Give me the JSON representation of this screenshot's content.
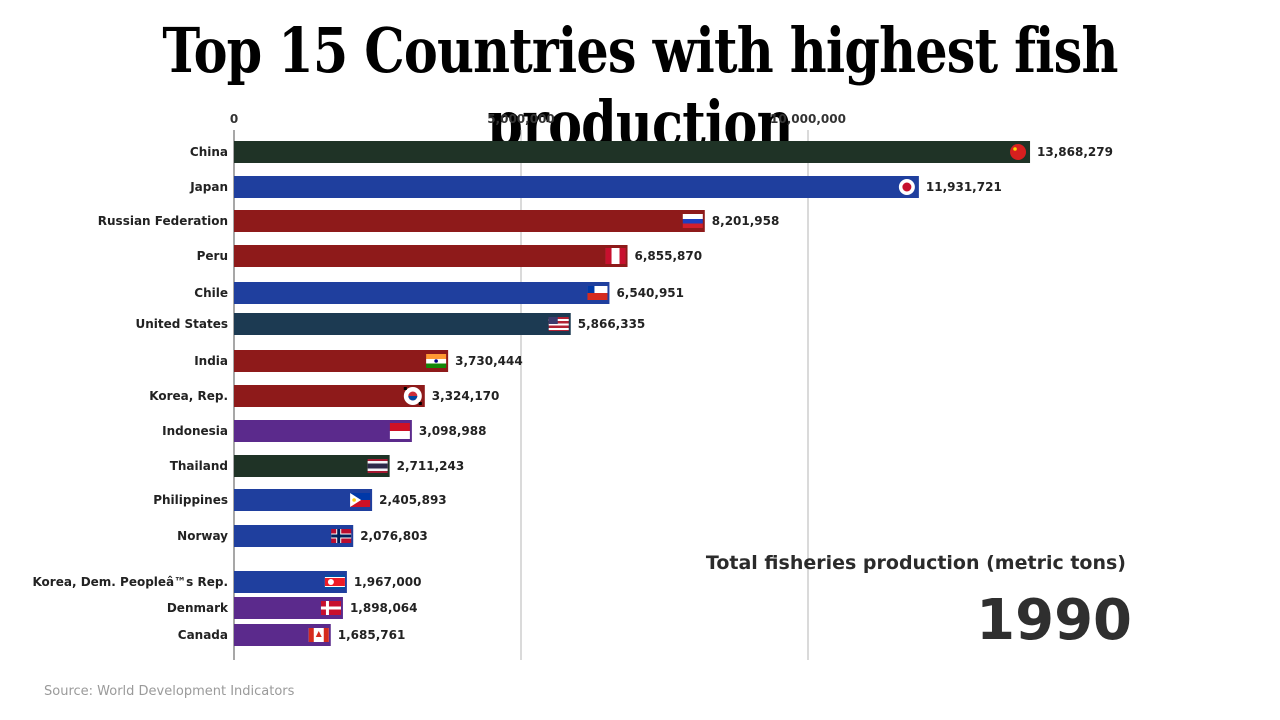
{
  "title": "Top 15 Countries with highest fish production",
  "metric_label": "Total fisheries production (metric tons)",
  "year": "1990",
  "source": "Source: World Development Indicators",
  "chart_data": {
    "type": "bar",
    "orientation": "horizontal",
    "xlim": [
      0,
      15000000
    ],
    "x_ticks": [
      0,
      5000000,
      10000000
    ],
    "x_tick_labels": [
      "0",
      "5,000,000",
      "10,000,000"
    ],
    "grid": true,
    "categories": [
      "China",
      "Japan",
      "Russian Federation",
      "Peru",
      "Chile",
      "United States",
      "India",
      "Korea, Rep.",
      "Indonesia",
      "Thailand",
      "Philippines",
      "Norway",
      "Korea, Dem. Peopleâ™s Rep.",
      "Denmark",
      "Canada"
    ],
    "values": [
      13868279,
      11931721,
      8201958,
      6855870,
      6540951,
      5866335,
      3730444,
      3324170,
      3098988,
      2711243,
      2405893,
      2076803,
      1967000,
      1898064,
      1685761
    ],
    "value_labels": [
      "13,868,279",
      "11,931,721",
      "8,201,958",
      "6,855,870",
      "6,540,951",
      "5,866,335",
      "3,730,444",
      "3,324,170",
      "3,098,988",
      "2,711,243",
      "2,405,893",
      "2,076,803",
      "1,967,000",
      "1,898,064",
      "1,685,761"
    ],
    "bar_colors": [
      "#1f3326",
      "#1f3f9e",
      "#8e1a1a",
      "#8e1a1a",
      "#1f3f9e",
      "#1c3a52",
      "#8e1a1a",
      "#8e1a1a",
      "#5b2a8c",
      "#1f3326",
      "#1f3f9e",
      "#1f3f9e",
      "#1f3f9e",
      "#5b2a8c",
      "#5b2a8c"
    ],
    "flag_icons": [
      "flag-china-icon",
      "flag-japan-icon",
      "flag-russia-icon",
      "flag-peru-icon",
      "flag-chile-icon",
      "flag-usa-icon",
      "flag-india-icon",
      "flag-korea-rep-icon",
      "flag-indonesia-icon",
      "flag-thailand-icon",
      "flag-philippines-icon",
      "flag-norway-icon",
      "flag-korea-dem-icon",
      "flag-denmark-icon",
      "flag-canada-icon"
    ]
  }
}
